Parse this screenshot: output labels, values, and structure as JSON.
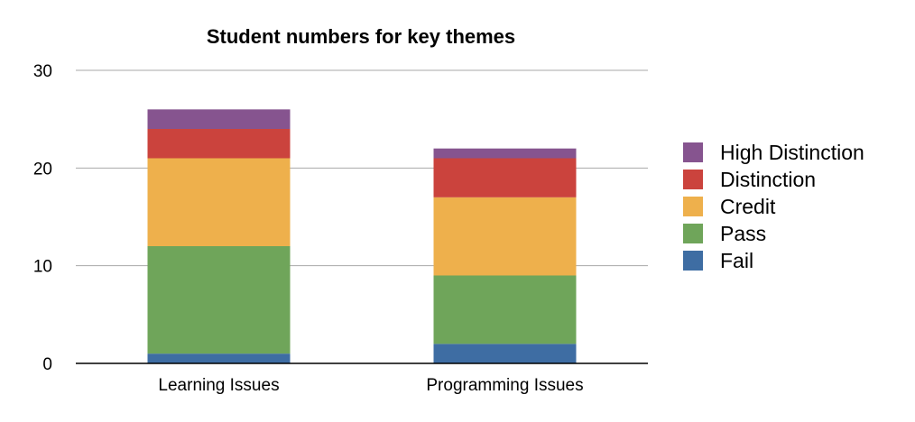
{
  "chart_data": {
    "type": "bar",
    "stacked": true,
    "title": "Student numbers for key themes",
    "xlabel": "",
    "ylabel": "",
    "ylim": [
      0,
      30
    ],
    "yticks": [
      "0",
      "10",
      "20",
      "30"
    ],
    "grid": true,
    "legend_position": "right",
    "categories": [
      "Learning Issues",
      "Programming Issues"
    ],
    "series": [
      {
        "name": "Fail",
        "color": "#3e6da3",
        "values": [
          1,
          2
        ]
      },
      {
        "name": "Pass",
        "color": "#6fa55a",
        "values": [
          11,
          7
        ]
      },
      {
        "name": "Credit",
        "color": "#eeb04c",
        "values": [
          9,
          8
        ]
      },
      {
        "name": "Distinction",
        "color": "#cb433d",
        "values": [
          3,
          4
        ]
      },
      {
        "name": "High Distinction",
        "color": "#86548f",
        "values": [
          2,
          1
        ]
      }
    ]
  }
}
